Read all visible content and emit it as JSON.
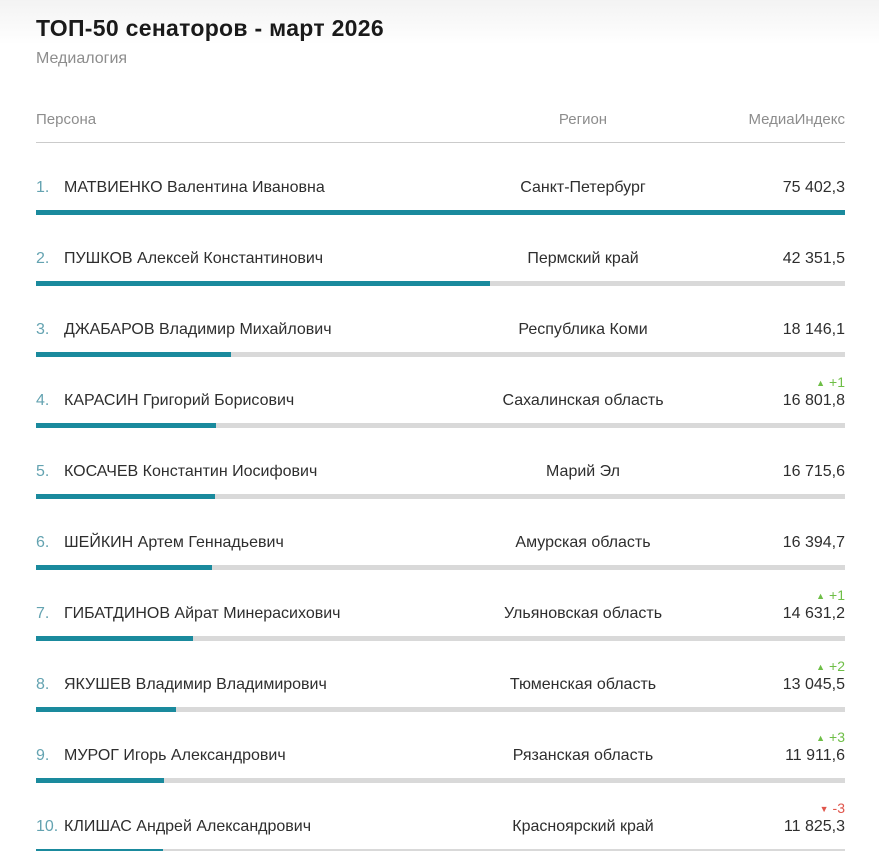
{
  "page": {
    "title": "ТОП-50 сенаторов - март 2026",
    "subtitle": "Медиалогия"
  },
  "table": {
    "columns": {
      "person": "Персона",
      "region": "Регион",
      "index": "МедиаИндекс"
    },
    "max_index": 75402.3,
    "rows": [
      {
        "rank": "1.",
        "person": "МАТВИЕНКО Валентина Ивановна",
        "region": "Санкт-Петербург",
        "index": "75 402,3",
        "index_value": 75402.3,
        "change": null
      },
      {
        "rank": "2.",
        "person": "ПУШКОВ Алексей Константинович",
        "region": "Пермский край",
        "index": "42 351,5",
        "index_value": 42351.5,
        "change": null
      },
      {
        "rank": "3.",
        "person": "ДЖАБАРОВ Владимир Михайлович",
        "region": "Республика Коми",
        "index": "18 146,1",
        "index_value": 18146.1,
        "change": null
      },
      {
        "rank": "4.",
        "person": "КАРАСИН Григорий Борисович",
        "region": "Сахалинская область",
        "index": "16 801,8",
        "index_value": 16801.8,
        "change": {
          "direction": "up",
          "label": "+1"
        }
      },
      {
        "rank": "5.",
        "person": "КОСАЧЕВ Константин Иосифович",
        "region": "Марий Эл",
        "index": "16 715,6",
        "index_value": 16715.6,
        "change": null
      },
      {
        "rank": "6.",
        "person": "ШЕЙКИН Артем Геннадьевич",
        "region": "Амурская область",
        "index": "16 394,7",
        "index_value": 16394.7,
        "change": null
      },
      {
        "rank": "7.",
        "person": "ГИБАТДИНОВ Айрат Минерасихович",
        "region": "Ульяновская область",
        "index": "14 631,2",
        "index_value": 14631.2,
        "change": {
          "direction": "up",
          "label": "+1"
        }
      },
      {
        "rank": "8.",
        "person": "ЯКУШЕВ Владимир Владимирович",
        "region": "Тюменская область",
        "index": "13 045,5",
        "index_value": 13045.5,
        "change": {
          "direction": "up",
          "label": "+2"
        }
      },
      {
        "rank": "9.",
        "person": "МУРОГ Игорь Александрович",
        "region": "Рязанская область",
        "index": "11 911,6",
        "index_value": 11911.6,
        "change": {
          "direction": "up",
          "label": "+3"
        }
      },
      {
        "rank": "10.",
        "person": "КЛИШАС Андрей Александрович",
        "region": "Красноярский край",
        "index": "11 825,3",
        "index_value": 11825.3,
        "change": {
          "direction": "down",
          "label": "-3"
        }
      }
    ]
  },
  "icons": {
    "up": "▲",
    "down": "▼"
  },
  "colors": {
    "bar_fill": "#1a8a9d",
    "bar_track": "#d9d9d9",
    "rank_number": "#64a3b1",
    "change_up": "#6ebe46",
    "change_down": "#e0554b",
    "header_text": "#8d8d8d",
    "body_text": "#2e2e2e"
  },
  "chart_data": {
    "type": "bar",
    "title": "ТОП-50 сенаторов - март 2026",
    "subtitle": "Медиалогия",
    "xlabel": "МедиаИндекс",
    "ylabel": "Персона",
    "xlim": [
      0,
      75402.3
    ],
    "legend": "none",
    "grid": false,
    "categories": [
      "МАТВИЕНКО Валентина Ивановна",
      "ПУШКОВ Алексей Константинович",
      "ДЖАБАРОВ Владимир Михайлович",
      "КАРАСИН Григорий Борисович",
      "КОСАЧЕВ Константин Иосифович",
      "ШЕЙКИН Артем Геннадьевич",
      "ГИБАТДИНОВ Айрат Минерасихович",
      "ЯКУШЕВ Владимир Владимирович",
      "МУРОГ Игорь Александрович",
      "КЛИШАС Андрей Александрович"
    ],
    "values": [
      75402.3,
      42351.5,
      18146.1,
      16801.8,
      16715.6,
      16394.7,
      14631.2,
      13045.5,
      11911.6,
      11825.3
    ],
    "regions": [
      "Санкт-Петербург",
      "Пермский край",
      "Республика Коми",
      "Сахалинская область",
      "Марий Эл",
      "Амурская область",
      "Ульяновская область",
      "Тюменская область",
      "Рязанская область",
      "Красноярский край"
    ],
    "rank_changes": [
      null,
      null,
      null,
      "+1",
      null,
      null,
      "+1",
      "+2",
      "+3",
      "-3"
    ]
  }
}
